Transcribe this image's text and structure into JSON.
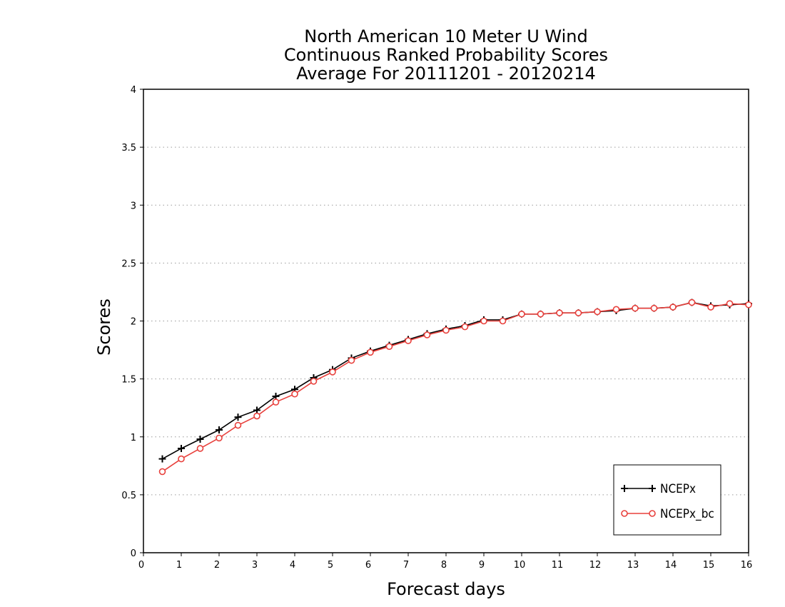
{
  "chart_data": {
    "type": "line",
    "title": [
      "North American 10 Meter U Wind",
      "Continuous Ranked Probability Scores",
      "Average For 20111201 - 20120214"
    ],
    "xlabel": "Forecast days",
    "ylabel": "Scores",
    "xlim": [
      0,
      16
    ],
    "ylim": [
      0,
      4
    ],
    "xticks": [
      "0",
      "1",
      "2",
      "3",
      "4",
      "5",
      "6",
      "7",
      "8",
      "9",
      "10",
      "11",
      "12",
      "13",
      "14",
      "15",
      "16"
    ],
    "yticks": [
      "0",
      "0.5",
      "1",
      "1.5",
      "2",
      "2.5",
      "3",
      "3.5",
      "4"
    ],
    "grid": "horizontal dotted",
    "legend_position": "bottom-right",
    "x": [
      0.5,
      1,
      1.5,
      2,
      2.5,
      3,
      3.5,
      4,
      4.5,
      5,
      5.5,
      6,
      6.5,
      7,
      7.5,
      8,
      8.5,
      9,
      9.5,
      10,
      10.5,
      11,
      11.5,
      12,
      12.5,
      13,
      13.5,
      14,
      14.5,
      15,
      15.5,
      16
    ],
    "series": [
      {
        "name": "NCEPx",
        "color": "#000000",
        "marker": "plus",
        "values": [
          0.81,
          0.9,
          0.98,
          1.06,
          1.17,
          1.23,
          1.35,
          1.41,
          1.51,
          1.58,
          1.68,
          1.74,
          1.79,
          1.84,
          1.89,
          1.93,
          1.96,
          2.01,
          2.01,
          2.06,
          2.06,
          2.07,
          2.07,
          2.08,
          2.09,
          2.11,
          2.11,
          2.12,
          2.16,
          2.13,
          2.14,
          2.15
        ]
      },
      {
        "name": "NCEPx_bc",
        "color": "#e8403c",
        "marker": "circle",
        "values": [
          0.7,
          0.81,
          0.9,
          0.99,
          1.1,
          1.18,
          1.3,
          1.37,
          1.48,
          1.56,
          1.66,
          1.73,
          1.78,
          1.83,
          1.88,
          1.92,
          1.95,
          2.0,
          2.0,
          2.06,
          2.06,
          2.07,
          2.07,
          2.08,
          2.1,
          2.11,
          2.11,
          2.12,
          2.16,
          2.12,
          2.15,
          2.14
        ]
      }
    ]
  }
}
